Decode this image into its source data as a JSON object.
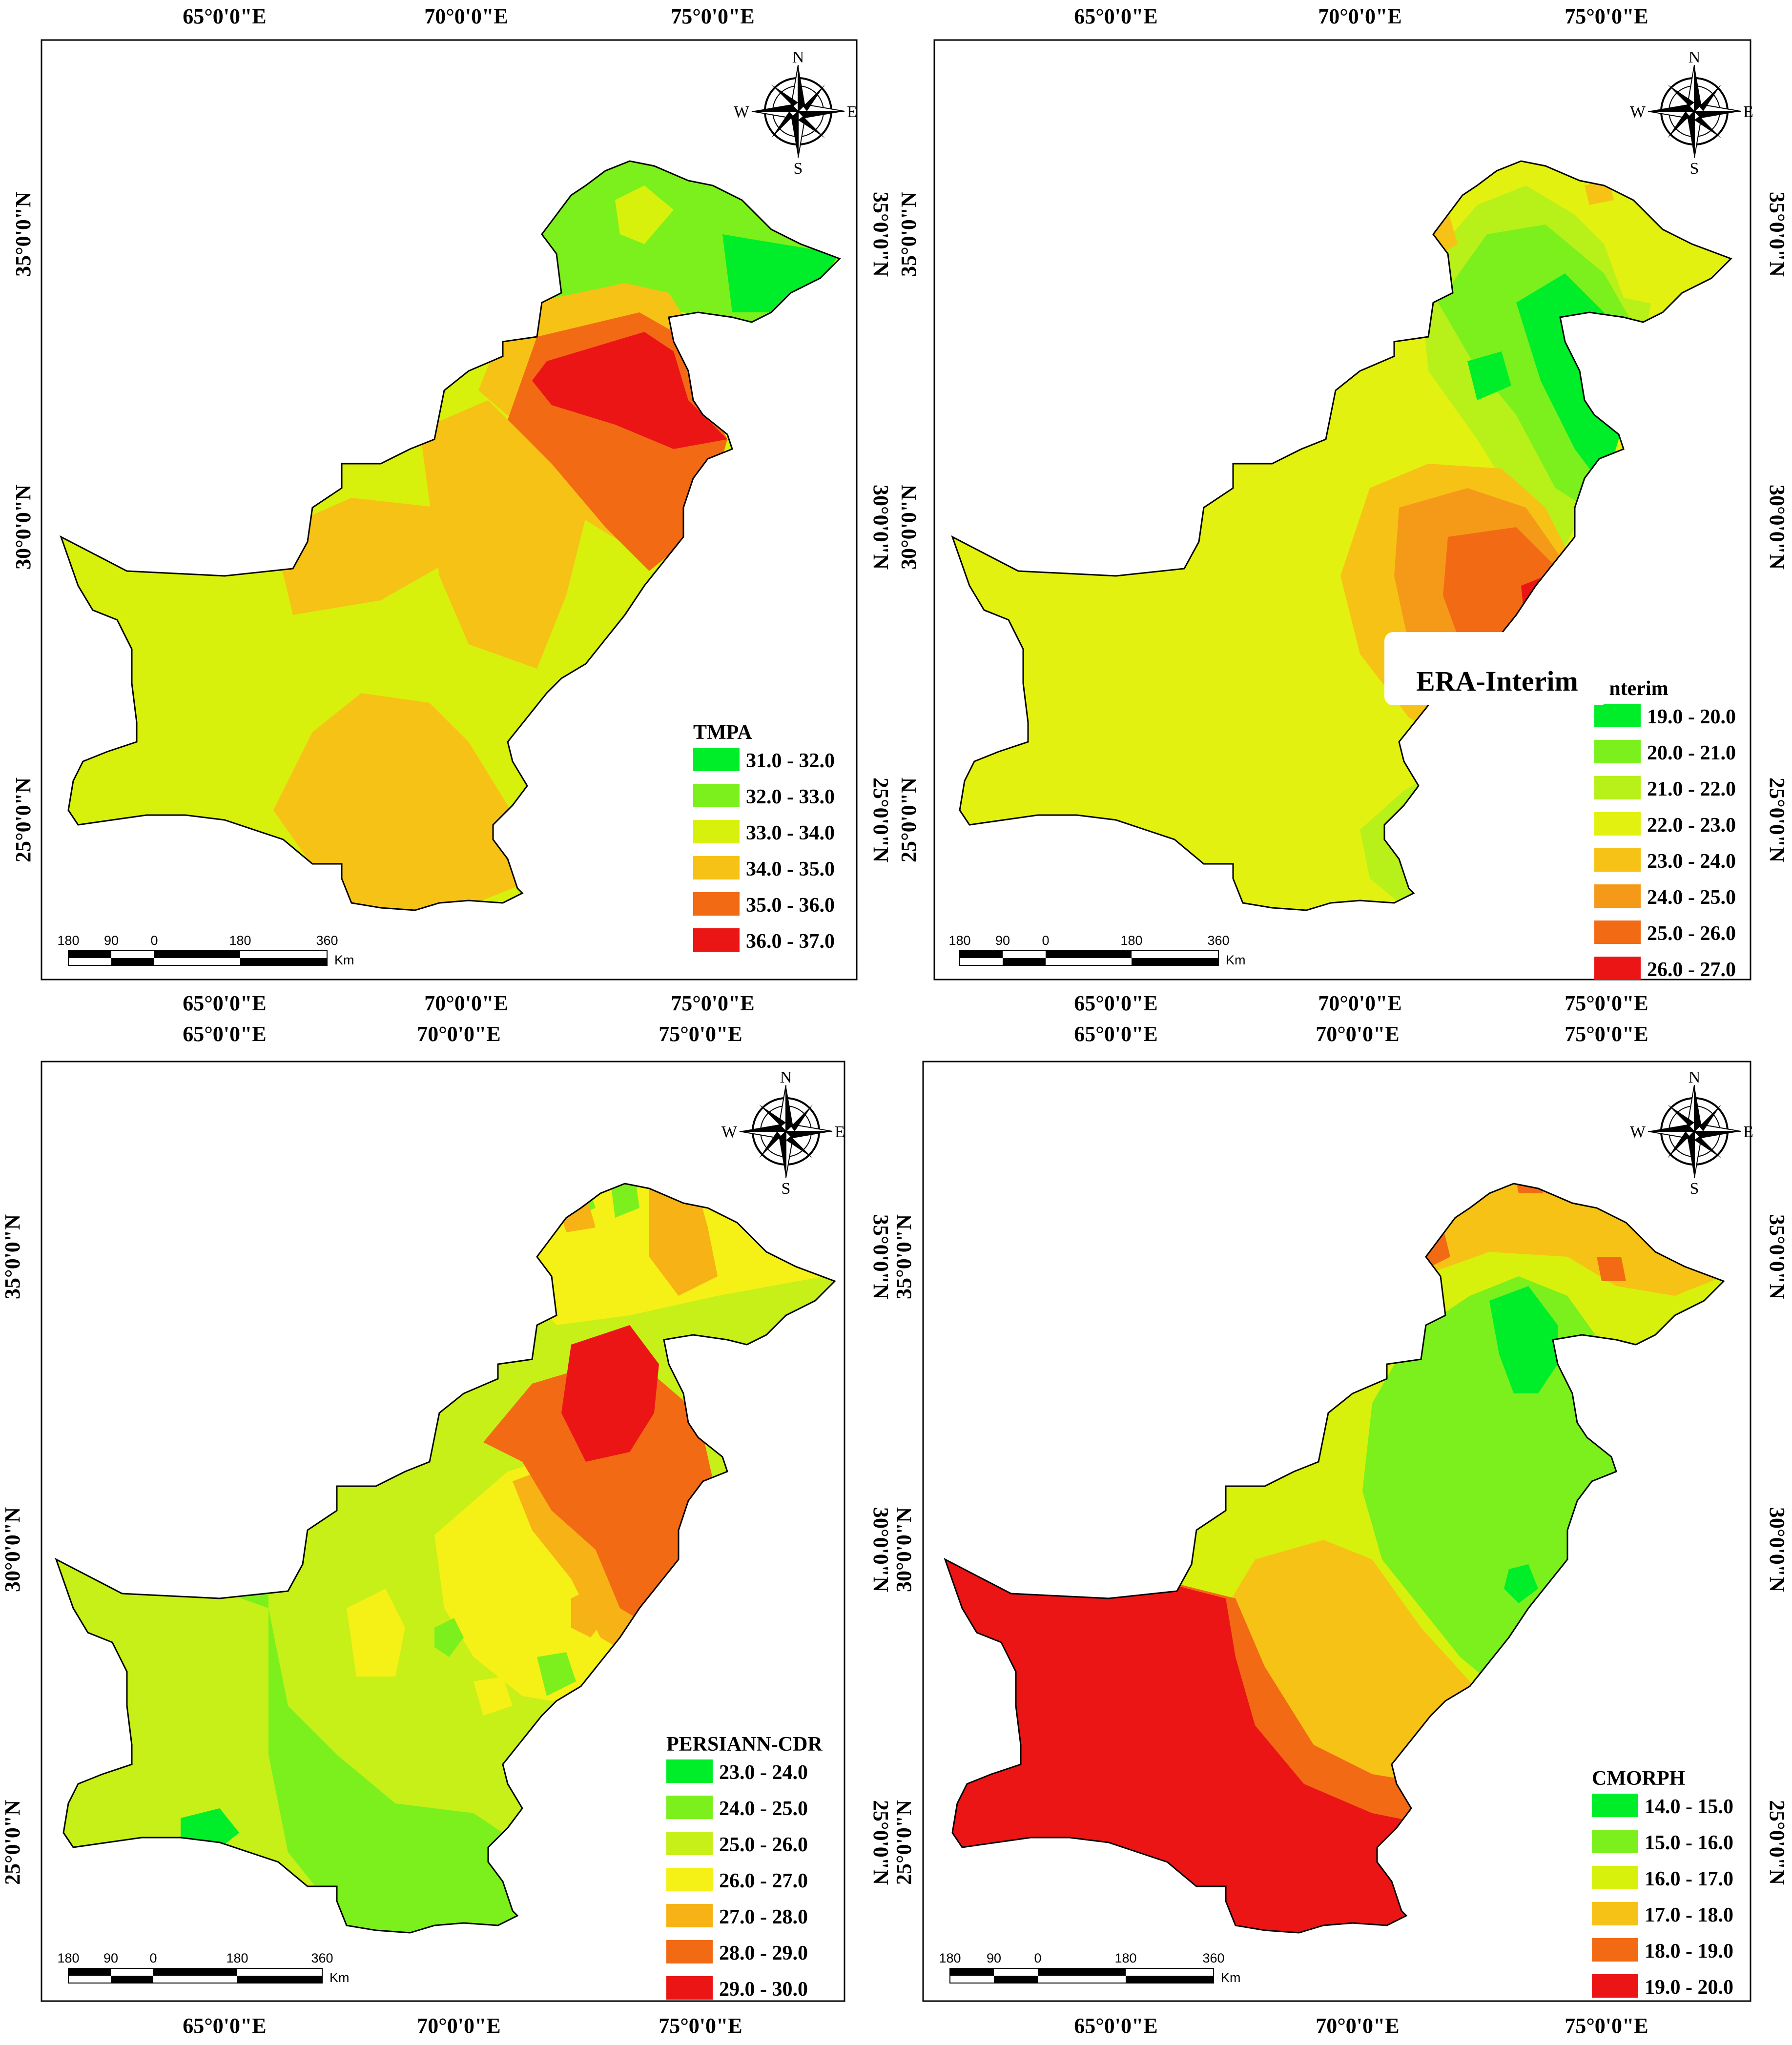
{
  "axes": {
    "lon_labels": [
      "65°0'0\"E",
      "70°0'0\"E",
      "75°0'0\"E"
    ],
    "lat_labels": [
      "35°0'0\"N",
      "30°0'0\"N",
      "25°0'0\"N"
    ]
  },
  "compass": {
    "n": "N",
    "s": "S",
    "e": "E",
    "w": "W"
  },
  "scalebar": {
    "ticks": [
      "180",
      "90",
      "0",
      "180",
      "360"
    ],
    "unit": "Km"
  },
  "panels": [
    {
      "title": "TMPA",
      "legend": [
        {
          "label": "31.0 - 32.0",
          "color": "#00ee2a"
        },
        {
          "label": "32.0 - 33.0",
          "color": "#7cf01c"
        },
        {
          "label": "33.0 - 34.0",
          "color": "#d7f10d"
        },
        {
          "label": "34.0 - 35.0",
          "color": "#f7c216"
        },
        {
          "label": "35.0 - 36.0",
          "color": "#f26b14"
        },
        {
          "label": "36.0 - 37.0",
          "color": "#ec1515"
        }
      ]
    },
    {
      "title": "-Interim",
      "overlay_title": "ERA-Interim",
      "legend": [
        {
          "label": "19.0 - 20.0",
          "color": "#00ee2a"
        },
        {
          "label": "20.0 - 21.0",
          "color": "#7cf01c"
        },
        {
          "label": "21.0 - 22.0",
          "color": "#b8f01a"
        },
        {
          "label": "22.0 - 23.0",
          "color": "#e3f110"
        },
        {
          "label": "23.0 - 24.0",
          "color": "#f7c216"
        },
        {
          "label": "24.0 - 25.0",
          "color": "#f59a18"
        },
        {
          "label": "25.0 - 26.0",
          "color": "#f26b14"
        },
        {
          "label": "26.0 - 27.0",
          "color": "#ec1515"
        }
      ]
    },
    {
      "title": "PERSIANN-CDR",
      "legend": [
        {
          "label": "23.0 - 24.0",
          "color": "#00ee2a"
        },
        {
          "label": "24.0 - 25.0",
          "color": "#7cf01c"
        },
        {
          "label": "25.0 - 26.0",
          "color": "#c6f017"
        },
        {
          "label": "26.0 - 27.0",
          "color": "#f5f016"
        },
        {
          "label": "27.0 - 28.0",
          "color": "#f7b216"
        },
        {
          "label": "28.0 - 29.0",
          "color": "#f26b14"
        },
        {
          "label": "29.0 - 30.0",
          "color": "#ec1515"
        }
      ]
    },
    {
      "title": "CMORPH",
      "legend": [
        {
          "label": "14.0 - 15.0",
          "color": "#00ee2a"
        },
        {
          "label": "15.0 - 16.0",
          "color": "#7cf01c"
        },
        {
          "label": "16.0 - 17.0",
          "color": "#d7f10d"
        },
        {
          "label": "17.0 - 18.0",
          "color": "#f7c216"
        },
        {
          "label": "18.0 - 19.0",
          "color": "#f26b14"
        },
        {
          "label": "19.0 - 20.0",
          "color": "#ec1515"
        }
      ]
    }
  ]
}
